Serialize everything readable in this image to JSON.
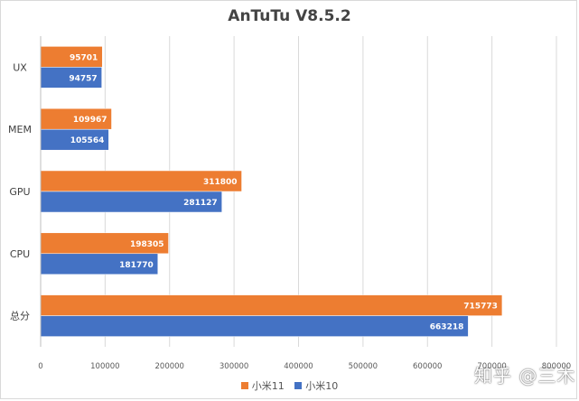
{
  "chart_data": {
    "type": "bar",
    "orientation": "horizontal",
    "title": "AnTuTu V8.5.2",
    "categories": [
      "UX",
      "MEM",
      "GPU",
      "CPU",
      "总分"
    ],
    "series": [
      {
        "name": "小米11",
        "color": "#ed7d31",
        "values": [
          95701,
          109967,
          311800,
          198305,
          715773
        ]
      },
      {
        "name": "小米10",
        "color": "#4472c4",
        "values": [
          94757,
          105564,
          281127,
          181770,
          663218
        ]
      }
    ],
    "xlim": [
      0,
      800000
    ],
    "xticks": [
      "0",
      "100000",
      "200000",
      "300000",
      "400000",
      "500000",
      "600000",
      "700000",
      "800000"
    ],
    "grid": true,
    "legend_position": "bottom"
  },
  "watermark": "知乎 @三木"
}
